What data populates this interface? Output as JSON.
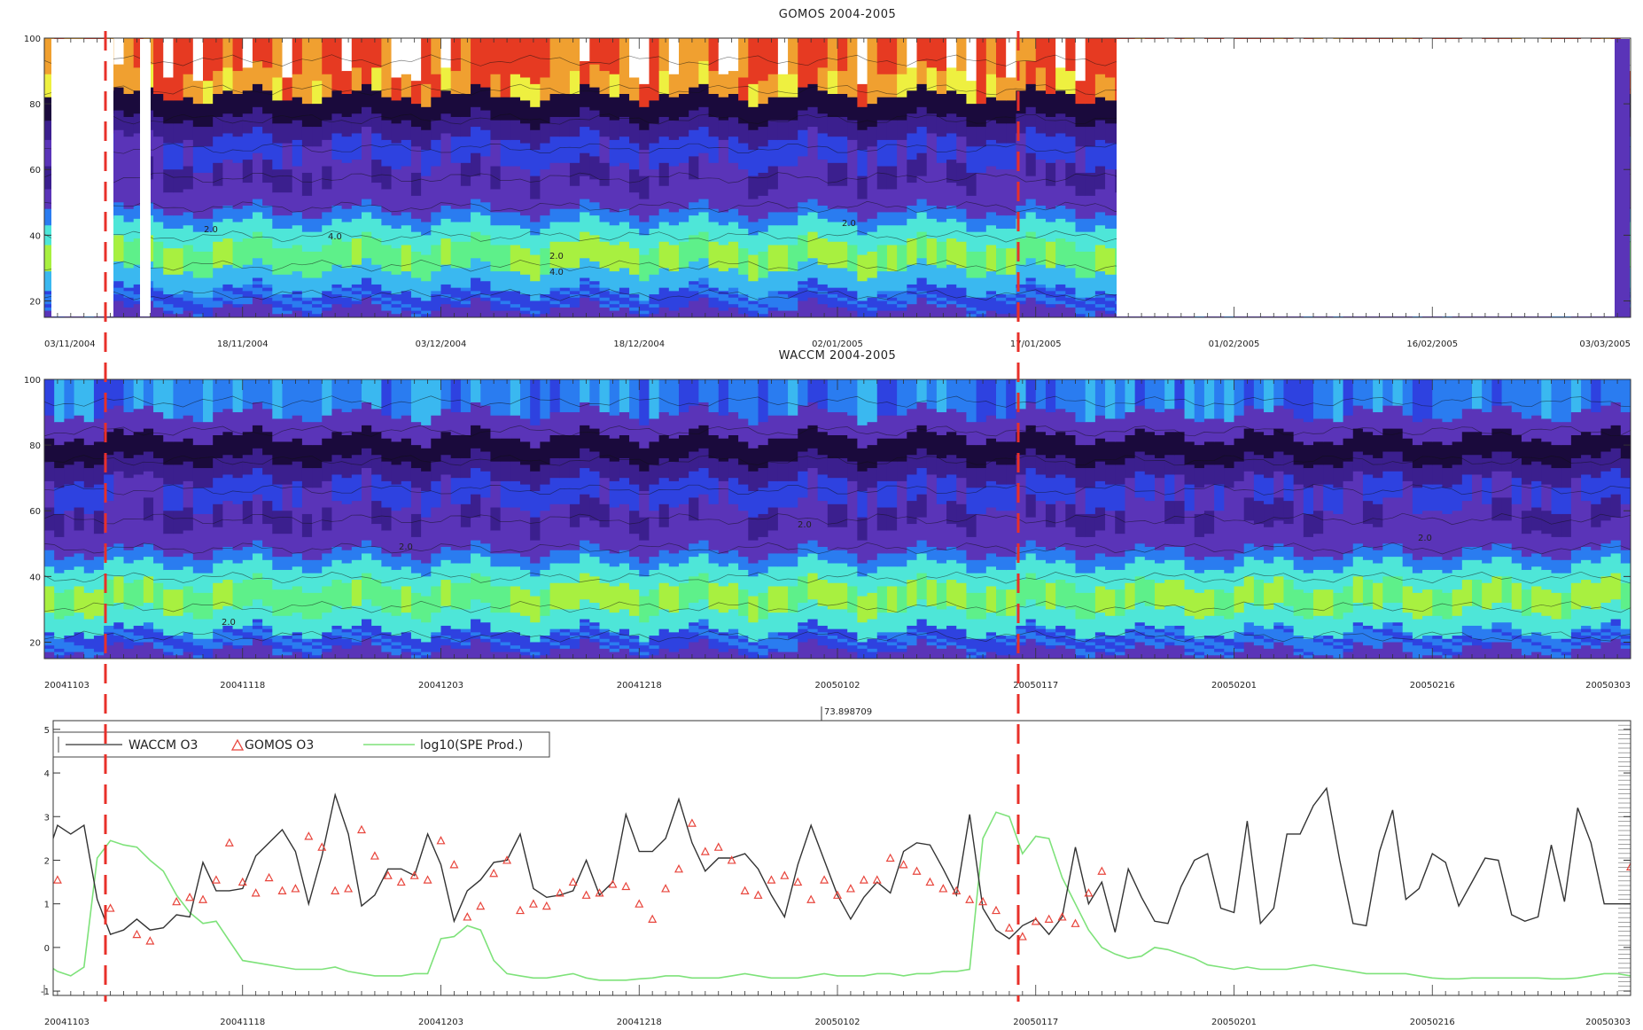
{
  "chart_data": [
    {
      "type": "heatmap",
      "title": "GOMOS 2004-2005",
      "x_tick_labels": [
        "03/11/2004",
        "18/11/2004",
        "03/12/2004",
        "18/12/2004",
        "02/01/2005",
        "17/01/2005",
        "01/02/2005",
        "16/02/2005",
        "03/03/2005"
      ],
      "ylim": [
        15,
        100
      ],
      "y_ticks": [
        20,
        40,
        60,
        80,
        100
      ],
      "data_gaps": [
        "03/11/2004-08/11/2004",
        "13/11/2004",
        "24/01/2005-02/03/2005"
      ],
      "colors": [
        "#1a0a3c",
        "#3b1f8e",
        "#5a34b8",
        "#2e42e0",
        "#2a7cf0",
        "#3ab8f0",
        "#4ee6d8",
        "#5ef08a",
        "#a8f040",
        "#eef040",
        "#f0a030",
        "#e63a22",
        "#ffffff"
      ],
      "contour_labels": [
        "2.0",
        "4.0",
        "2.0",
        "4.0",
        "2.0"
      ]
    },
    {
      "type": "heatmap",
      "title": "WACCM 2004-2005",
      "x_tick_labels": [
        "20041103",
        "20041118",
        "20041203",
        "20041218",
        "20050102",
        "20050117",
        "20050201",
        "20050216",
        "20050303"
      ],
      "ylim": [
        15,
        100
      ],
      "y_ticks": [
        20,
        40,
        60,
        80,
        100
      ],
      "contour_labels": [
        "2.0",
        "2.0",
        "2.0",
        "2.0"
      ]
    },
    {
      "type": "line",
      "annotation": "73.898709",
      "x_tick_labels": [
        "20041103",
        "20041118",
        "20041203",
        "20041218",
        "20050102",
        "20050117",
        "20050201",
        "20050216",
        "20050303"
      ],
      "ylim": [
        -1.1,
        5.2
      ],
      "y_ticks": [
        -1,
        0,
        1,
        2,
        3,
        4,
        5
      ],
      "legend_position": "top-left",
      "series": [
        {
          "name": "WACCM O3",
          "color": "#333333",
          "x": [
            0,
            1,
            2,
            3,
            4,
            5,
            6,
            7,
            8,
            9,
            10,
            11,
            12,
            13,
            14,
            15,
            16,
            17,
            18,
            19,
            20,
            21,
            22,
            23,
            24,
            25,
            26,
            27,
            28,
            29,
            30,
            31,
            32,
            33,
            34,
            35,
            36,
            37,
            38,
            39,
            40,
            41,
            42,
            43,
            44,
            45,
            46,
            47,
            48,
            49,
            50,
            51,
            52,
            53,
            54,
            55,
            56,
            57,
            58,
            59,
            60,
            61,
            62,
            63,
            64,
            65,
            66,
            67,
            68,
            69,
            70,
            71,
            72,
            73,
            74,
            75,
            76,
            77,
            78,
            79,
            80,
            81,
            82,
            83,
            84,
            85,
            86,
            87,
            88,
            89,
            90,
            91,
            92,
            93,
            94,
            95,
            96,
            97,
            98,
            99,
            100,
            101,
            102,
            103,
            104,
            105,
            106,
            107,
            108,
            109,
            110,
            111,
            112,
            113,
            114,
            115,
            116,
            117,
            118,
            119,
            120
          ],
          "y": [
            1.9,
            2.8,
            2.6,
            2.8,
            1.1,
            0.3,
            0.4,
            0.65,
            0.4,
            0.45,
            0.75,
            0.7,
            1.95,
            1.3,
            1.3,
            1.35,
            2.1,
            2.4,
            2.7,
            2.2,
            1.0,
            2.1,
            3.5,
            2.6,
            0.95,
            1.2,
            1.8,
            1.8,
            1.65,
            2.6,
            1.9,
            0.6,
            1.3,
            1.55,
            1.95,
            2.0,
            2.6,
            1.35,
            1.15,
            1.2,
            1.3,
            2.0,
            1.2,
            1.5,
            3.05,
            2.2,
            2.2,
            2.5,
            3.4,
            2.4,
            1.75,
            2.05,
            2.05,
            2.15,
            1.8,
            1.2,
            0.7,
            1.9,
            2.8,
            2.0,
            1.2,
            0.65,
            1.15,
            1.5,
            1.25,
            2.2,
            2.4,
            2.35,
            1.8,
            1.2,
            3.05,
            0.9,
            0.4,
            0.2,
            0.5,
            0.65,
            0.3,
            0.7,
            2.3,
            1.0,
            1.5,
            0.35,
            1.8,
            1.15,
            0.6,
            0.55,
            1.4,
            2.0,
            2.15,
            0.9,
            0.8,
            2.9,
            0.55,
            0.9,
            2.6,
            2.6,
            3.25,
            3.65,
            2.0,
            0.55,
            0.5,
            2.2,
            3.15,
            1.1,
            1.35,
            2.15,
            1.95,
            0.95,
            1.5,
            2.05,
            2.0,
            0.75,
            0.6,
            0.7,
            2.35,
            1.05,
            3.2,
            2.4,
            1.0,
            1.0,
            1.0
          ]
        },
        {
          "name": "GOMOS O3",
          "color": "#e8453c",
          "marker": "triangle",
          "x": [
            0,
            1,
            5,
            7,
            8,
            10,
            11,
            12,
            13,
            14,
            15,
            16,
            17,
            18,
            19,
            20,
            21,
            22,
            23,
            24,
            25,
            26,
            27,
            28,
            29,
            30,
            31,
            32,
            33,
            34,
            35,
            36,
            37,
            38,
            39,
            40,
            41,
            42,
            43,
            44,
            45,
            46,
            47,
            48,
            49,
            50,
            51,
            52,
            53,
            54,
            55,
            56,
            57,
            58,
            59,
            60,
            61,
            62,
            63,
            64,
            65,
            66,
            67,
            68,
            69,
            70,
            71,
            72,
            73,
            74,
            75,
            76,
            77,
            78,
            79,
            80,
            120
          ],
          "y": [
            0.5,
            1.55,
            0.9,
            0.3,
            0.15,
            1.05,
            1.15,
            1.1,
            1.55,
            2.4,
            1.5,
            1.25,
            1.6,
            1.3,
            1.35,
            2.55,
            2.3,
            1.3,
            1.35,
            2.7,
            2.1,
            1.65,
            1.5,
            1.65,
            1.55,
            2.45,
            1.9,
            0.7,
            0.95,
            1.7,
            2.0,
            0.85,
            1.0,
            0.95,
            1.25,
            1.5,
            1.2,
            1.25,
            1.45,
            1.4,
            1.0,
            0.65,
            1.35,
            1.8,
            2.85,
            2.2,
            2.3,
            2.0,
            1.3,
            1.2,
            1.55,
            1.65,
            1.5,
            1.1,
            1.55,
            1.2,
            1.35,
            1.55,
            1.55,
            2.05,
            1.9,
            1.75,
            1.5,
            1.35,
            1.3,
            1.1,
            1.05,
            0.85,
            0.45,
            0.25,
            0.6,
            0.65,
            0.7,
            0.55,
            1.25,
            1.75,
            1.85
          ]
        },
        {
          "name": "log10(SPE Prod.)",
          "color": "#7ee27a",
          "x": [
            0,
            1,
            2,
            3,
            4,
            5,
            6,
            7,
            8,
            9,
            10,
            11,
            12,
            13,
            14,
            15,
            16,
            17,
            18,
            19,
            20,
            21,
            22,
            23,
            24,
            25,
            26,
            27,
            28,
            29,
            30,
            31,
            32,
            33,
            34,
            35,
            36,
            37,
            38,
            39,
            40,
            41,
            42,
            43,
            44,
            45,
            46,
            47,
            48,
            49,
            50,
            51,
            52,
            53,
            54,
            55,
            56,
            57,
            58,
            59,
            60,
            61,
            62,
            63,
            64,
            65,
            66,
            67,
            68,
            69,
            70,
            71,
            72,
            73,
            74,
            75,
            76,
            77,
            78,
            79,
            80,
            81,
            82,
            83,
            84,
            85,
            86,
            87,
            88,
            89,
            90,
            91,
            92,
            93,
            94,
            95,
            96,
            97,
            98,
            99,
            100,
            101,
            102,
            103,
            104,
            105,
            106,
            107,
            108,
            109,
            110,
            111,
            112,
            113,
            114,
            115,
            116,
            117,
            118,
            119,
            120
          ],
          "y": [
            -0.35,
            -0.55,
            -0.65,
            -0.45,
            2.05,
            2.45,
            2.35,
            2.3,
            2.0,
            1.75,
            1.2,
            0.8,
            0.55,
            0.6,
            0.15,
            -0.3,
            -0.35,
            -0.4,
            -0.45,
            -0.5,
            -0.5,
            -0.5,
            -0.45,
            -0.55,
            -0.6,
            -0.65,
            -0.65,
            -0.65,
            -0.6,
            -0.6,
            0.2,
            0.25,
            0.5,
            0.4,
            -0.3,
            -0.6,
            -0.65,
            -0.7,
            -0.7,
            -0.65,
            -0.6,
            -0.7,
            -0.75,
            -0.75,
            -0.75,
            -0.72,
            -0.7,
            -0.65,
            -0.65,
            -0.7,
            -0.7,
            -0.7,
            -0.65,
            -0.6,
            -0.65,
            -0.7,
            -0.7,
            -0.7,
            -0.65,
            -0.6,
            -0.65,
            -0.65,
            -0.65,
            -0.6,
            -0.6,
            -0.65,
            -0.6,
            -0.6,
            -0.55,
            -0.55,
            -0.5,
            2.5,
            3.1,
            3.0,
            2.15,
            2.55,
            2.5,
            1.6,
            1.0,
            0.4,
            0.0,
            -0.15,
            -0.25,
            -0.2,
            0.0,
            -0.05,
            -0.15,
            -0.25,
            -0.4,
            -0.45,
            -0.5,
            -0.45,
            -0.5,
            -0.5,
            -0.5,
            -0.45,
            -0.4,
            -0.45,
            -0.5,
            -0.55,
            -0.6,
            -0.6,
            -0.6,
            -0.6,
            -0.65,
            -0.7,
            -0.72,
            -0.72,
            -0.7,
            -0.7,
            -0.7,
            -0.7,
            -0.7,
            -0.7,
            -0.72,
            -0.72,
            -0.7,
            -0.65,
            -0.6,
            -0.6,
            -0.65
          ]
        }
      ]
    }
  ]
}
